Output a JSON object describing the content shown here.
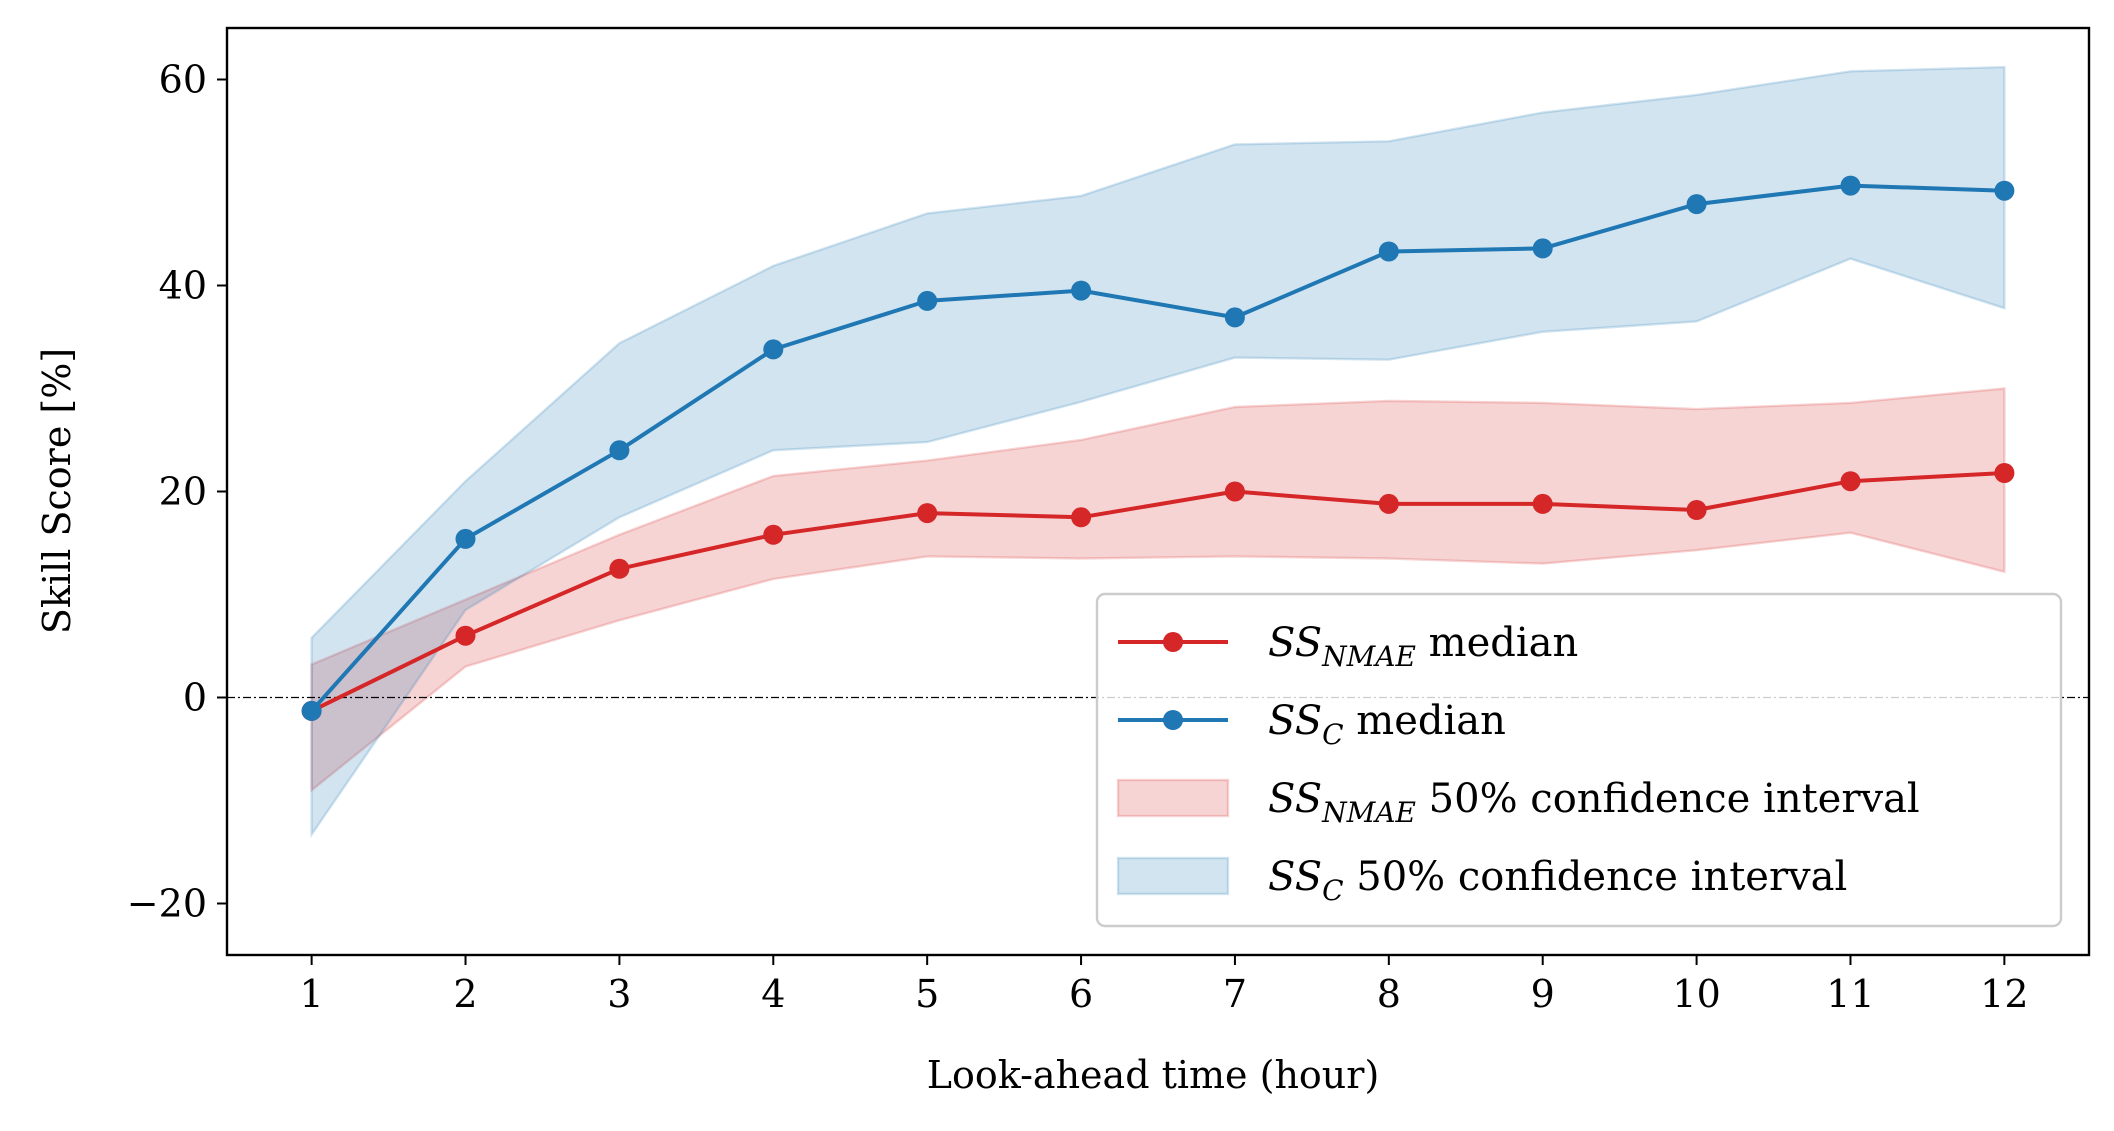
{
  "chart_data": {
    "type": "line",
    "title": "",
    "xlabel": "Look-ahead time (hour)",
    "ylabel": "Skill Score [%]",
    "xlim": [
      0.45,
      12.55
    ],
    "ylim": [
      -25,
      65
    ],
    "x": [
      1,
      2,
      3,
      4,
      5,
      6,
      7,
      8,
      9,
      10,
      11,
      12
    ],
    "x_ticks": [
      "1",
      "2",
      "3",
      "4",
      "5",
      "6",
      "7",
      "8",
      "9",
      "10",
      "11",
      "12"
    ],
    "y_ticks": [
      {
        "value": -20,
        "label": "−20"
      },
      {
        "value": 0,
        "label": "0"
      },
      {
        "value": 20,
        "label": "20"
      },
      {
        "value": 40,
        "label": "40"
      },
      {
        "value": 60,
        "label": "60"
      }
    ],
    "reference_line": {
      "y": 0,
      "style": "dash-dot",
      "color": "#000000"
    },
    "series": [
      {
        "name": "SS_NMAE median",
        "legend": {
          "main": "SS",
          "sub": "NMAE",
          "suffix": " median"
        },
        "color": "#d62728",
        "values": [
          -1.3,
          6.0,
          12.5,
          15.8,
          17.9,
          17.5,
          20.0,
          18.8,
          18.8,
          18.2,
          21.0,
          21.8
        ]
      },
      {
        "name": "SS_C median",
        "legend": {
          "main": "SS",
          "sub": "C",
          "suffix": " median"
        },
        "color": "#1f77b4",
        "values": [
          -1.3,
          15.4,
          24.0,
          33.8,
          38.5,
          39.5,
          36.9,
          43.3,
          43.6,
          47.9,
          49.7,
          49.2
        ]
      }
    ],
    "bands": [
      {
        "name": "SS_NMAE 50% confidence interval",
        "legend": {
          "main": "SS",
          "sub": "NMAE",
          "suffix": " 50% confidence interval"
        },
        "color": "#d62728",
        "lower": [
          -9.0,
          3.0,
          7.5,
          11.5,
          13.7,
          13.5,
          13.7,
          13.5,
          13.0,
          14.3,
          16.0,
          12.2
        ],
        "upper": [
          3.2,
          9.5,
          15.8,
          21.5,
          23.0,
          25.0,
          28.2,
          28.8,
          28.6,
          28.0,
          28.6,
          30.0
        ]
      },
      {
        "name": "SS_C 50% confidence interval",
        "legend": {
          "main": "SS",
          "sub": "C",
          "suffix": " 50% confidence interval"
        },
        "color": "#1f77b4",
        "lower": [
          -13.3,
          8.5,
          17.5,
          24.0,
          24.8,
          28.7,
          33.0,
          32.8,
          35.5,
          36.5,
          42.6,
          37.8
        ],
        "upper": [
          5.8,
          21.0,
          34.4,
          41.9,
          47.0,
          48.7,
          53.7,
          54.0,
          56.8,
          58.5,
          60.8,
          61.2
        ]
      }
    ],
    "legend_position": "lower-right"
  }
}
